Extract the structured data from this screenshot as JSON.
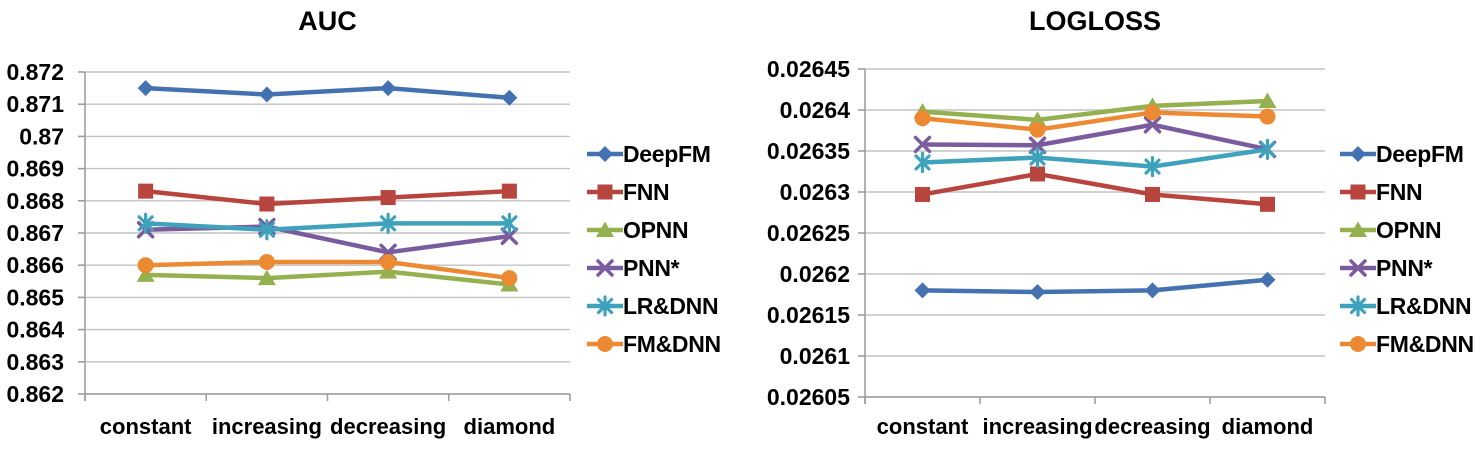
{
  "figure": {
    "background": "#FFFFFF",
    "text_color": "#000000",
    "gridline_color": "#C3C3C3",
    "axis_color": "#9E9E9E"
  },
  "chart_data": [
    {
      "type": "line",
      "title": "AUC",
      "categories": [
        "constant",
        "increasing",
        "decreasing",
        "diamond"
      ],
      "ylim": [
        0.862,
        0.872
      ],
      "ytick_step": 0.001,
      "ytick_labels": [
        "0.872",
        "0.871",
        "0.87",
        "0.869",
        "0.868",
        "0.867",
        "0.866",
        "0.865",
        "0.864",
        "0.863",
        "0.862"
      ],
      "grid": true,
      "legend_position": "right",
      "series": [
        {
          "name": "DeepFM",
          "marker": "diamond",
          "color": "#4472B0",
          "values": [
            0.8715,
            0.8713,
            0.8715,
            0.8712
          ]
        },
        {
          "name": "FNN",
          "marker": "square",
          "color": "#B8443E",
          "values": [
            0.8683,
            0.8679,
            0.8681,
            0.8683
          ]
        },
        {
          "name": "OPNN",
          "marker": "triangle",
          "color": "#94B04F",
          "values": [
            0.8657,
            0.8656,
            0.8658,
            0.8654
          ]
        },
        {
          "name": "PNN*",
          "marker": "x",
          "color": "#7A5C9E",
          "values": [
            0.8671,
            0.8672,
            0.8664,
            0.8669
          ]
        },
        {
          "name": "LR&DNN",
          "marker": "asterisk",
          "color": "#3FA2BD",
          "values": [
            0.8673,
            0.8671,
            0.8673,
            0.8673
          ]
        },
        {
          "name": "FM&DNN",
          "marker": "circle",
          "color": "#EC8A33",
          "values": [
            0.866,
            0.8661,
            0.8661,
            0.8656
          ]
        }
      ]
    },
    {
      "type": "line",
      "title": "LOGLOSS",
      "categories": [
        "constant",
        "increasing",
        "decreasing",
        "diamond"
      ],
      "ylim": [
        0.02605,
        0.02645
      ],
      "ytick_step": 5e-05,
      "ytick_labels": [
        "0.02645",
        "0.0264",
        "0.02635",
        "0.0263",
        "0.02625",
        "0.0262",
        "0.02615",
        "0.0261",
        "0.02605"
      ],
      "grid": true,
      "legend_position": "right",
      "series": [
        {
          "name": "DeepFM",
          "marker": "diamond",
          "color": "#4472B0",
          "values": [
            0.02618,
            0.026178,
            0.02618,
            0.026193
          ]
        },
        {
          "name": "FNN",
          "marker": "square",
          "color": "#B8443E",
          "values": [
            0.026297,
            0.026322,
            0.026297,
            0.026285
          ]
        },
        {
          "name": "OPNN",
          "marker": "triangle",
          "color": "#94B04F",
          "values": [
            0.026398,
            0.026388,
            0.026405,
            0.026411
          ]
        },
        {
          "name": "PNN*",
          "marker": "x",
          "color": "#7A5C9E",
          "values": [
            0.026358,
            0.026357,
            0.026382,
            0.026352
          ]
        },
        {
          "name": "LR&DNN",
          "marker": "asterisk",
          "color": "#3FA2BD",
          "values": [
            0.026336,
            0.026342,
            0.026331,
            0.026352
          ]
        },
        {
          "name": "FM&DNN",
          "marker": "circle",
          "color": "#EC8A33",
          "values": [
            0.02639,
            0.026376,
            0.026397,
            0.026392
          ]
        }
      ]
    }
  ]
}
